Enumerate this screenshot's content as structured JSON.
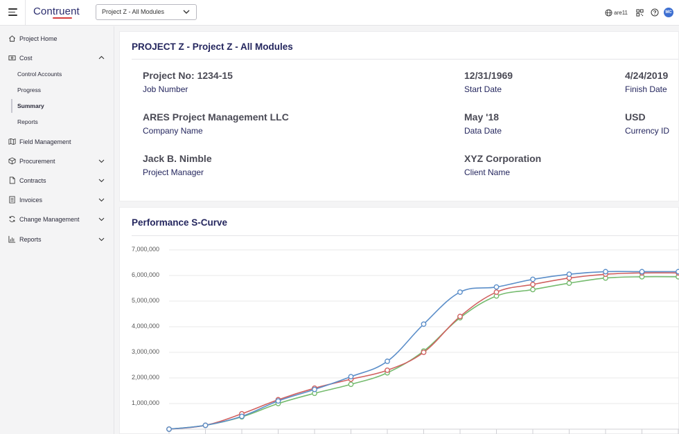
{
  "app": {
    "logo": "Contruent",
    "project_select": "Project Z - All Modules",
    "user": "are11",
    "avatar_initials": "MC",
    "icons": [
      "menu-icon",
      "globe-icon",
      "apps-icon",
      "help-icon"
    ]
  },
  "sidebar": {
    "project_home": "Project Home",
    "cost": "Cost",
    "cost_sub": [
      "Control Accounts",
      "Progress",
      "Summary",
      "Reports"
    ],
    "active_sub": "Summary",
    "field_management": "Field Management",
    "procurement": "Procurement",
    "contracts": "Contracts",
    "invoices": "Invoices",
    "change_management": "Change Management",
    "reports": "Reports"
  },
  "summary": {
    "title": "PROJECT Z - Project Z - All Modules",
    "fields": [
      {
        "value": "Project No: 1234-15",
        "label": "Job Number"
      },
      {
        "value": "12/31/1969",
        "label": "Start Date"
      },
      {
        "value": "4/24/2019",
        "label": "Finish Date"
      },
      {
        "value": "ARES Project Management LLC",
        "label": "Company Name"
      },
      {
        "value": "May '18",
        "label": "Data Date"
      },
      {
        "value": "USD",
        "label": "Currency ID"
      },
      {
        "value": "Jack B. Nimble",
        "label": "Project Manager"
      },
      {
        "value": "XYZ Corporation",
        "label": "Client Name"
      }
    ]
  },
  "chart_data": {
    "type": "line",
    "title": "Performance S-Curve",
    "xlabel": "",
    "ylabel": "",
    "ylim": [
      0,
      7000000
    ],
    "yticks": [
      "7,000,000",
      "6,000,000",
      "5,000,000",
      "4,000,000",
      "3,000,000",
      "2,000,000",
      "1,000,000"
    ],
    "grid": true,
    "x": [
      1,
      2,
      3,
      4,
      5,
      6,
      7,
      8,
      9,
      10,
      11,
      12,
      13,
      14,
      15
    ],
    "series": [
      {
        "color": "#5b8ec9",
        "values": [
          0,
          150000,
          500000,
          1100000,
          1550000,
          2050000,
          2650000,
          4100000,
          5350000,
          5550000,
          5850000,
          6050000,
          6150000,
          6150000,
          6150000
        ]
      },
      {
        "color": "#d0605f",
        "values": [
          0,
          150000,
          600000,
          1150000,
          1600000,
          1950000,
          2300000,
          3000000,
          4400000,
          5350000,
          5650000,
          5900000,
          6050000,
          6100000,
          6100000
        ]
      },
      {
        "color": "#75bb6e",
        "values": [
          0,
          150000,
          480000,
          1000000,
          1400000,
          1750000,
          2200000,
          3050000,
          4350000,
          5200000,
          5450000,
          5700000,
          5900000,
          5950000,
          5950000
        ]
      }
    ]
  }
}
